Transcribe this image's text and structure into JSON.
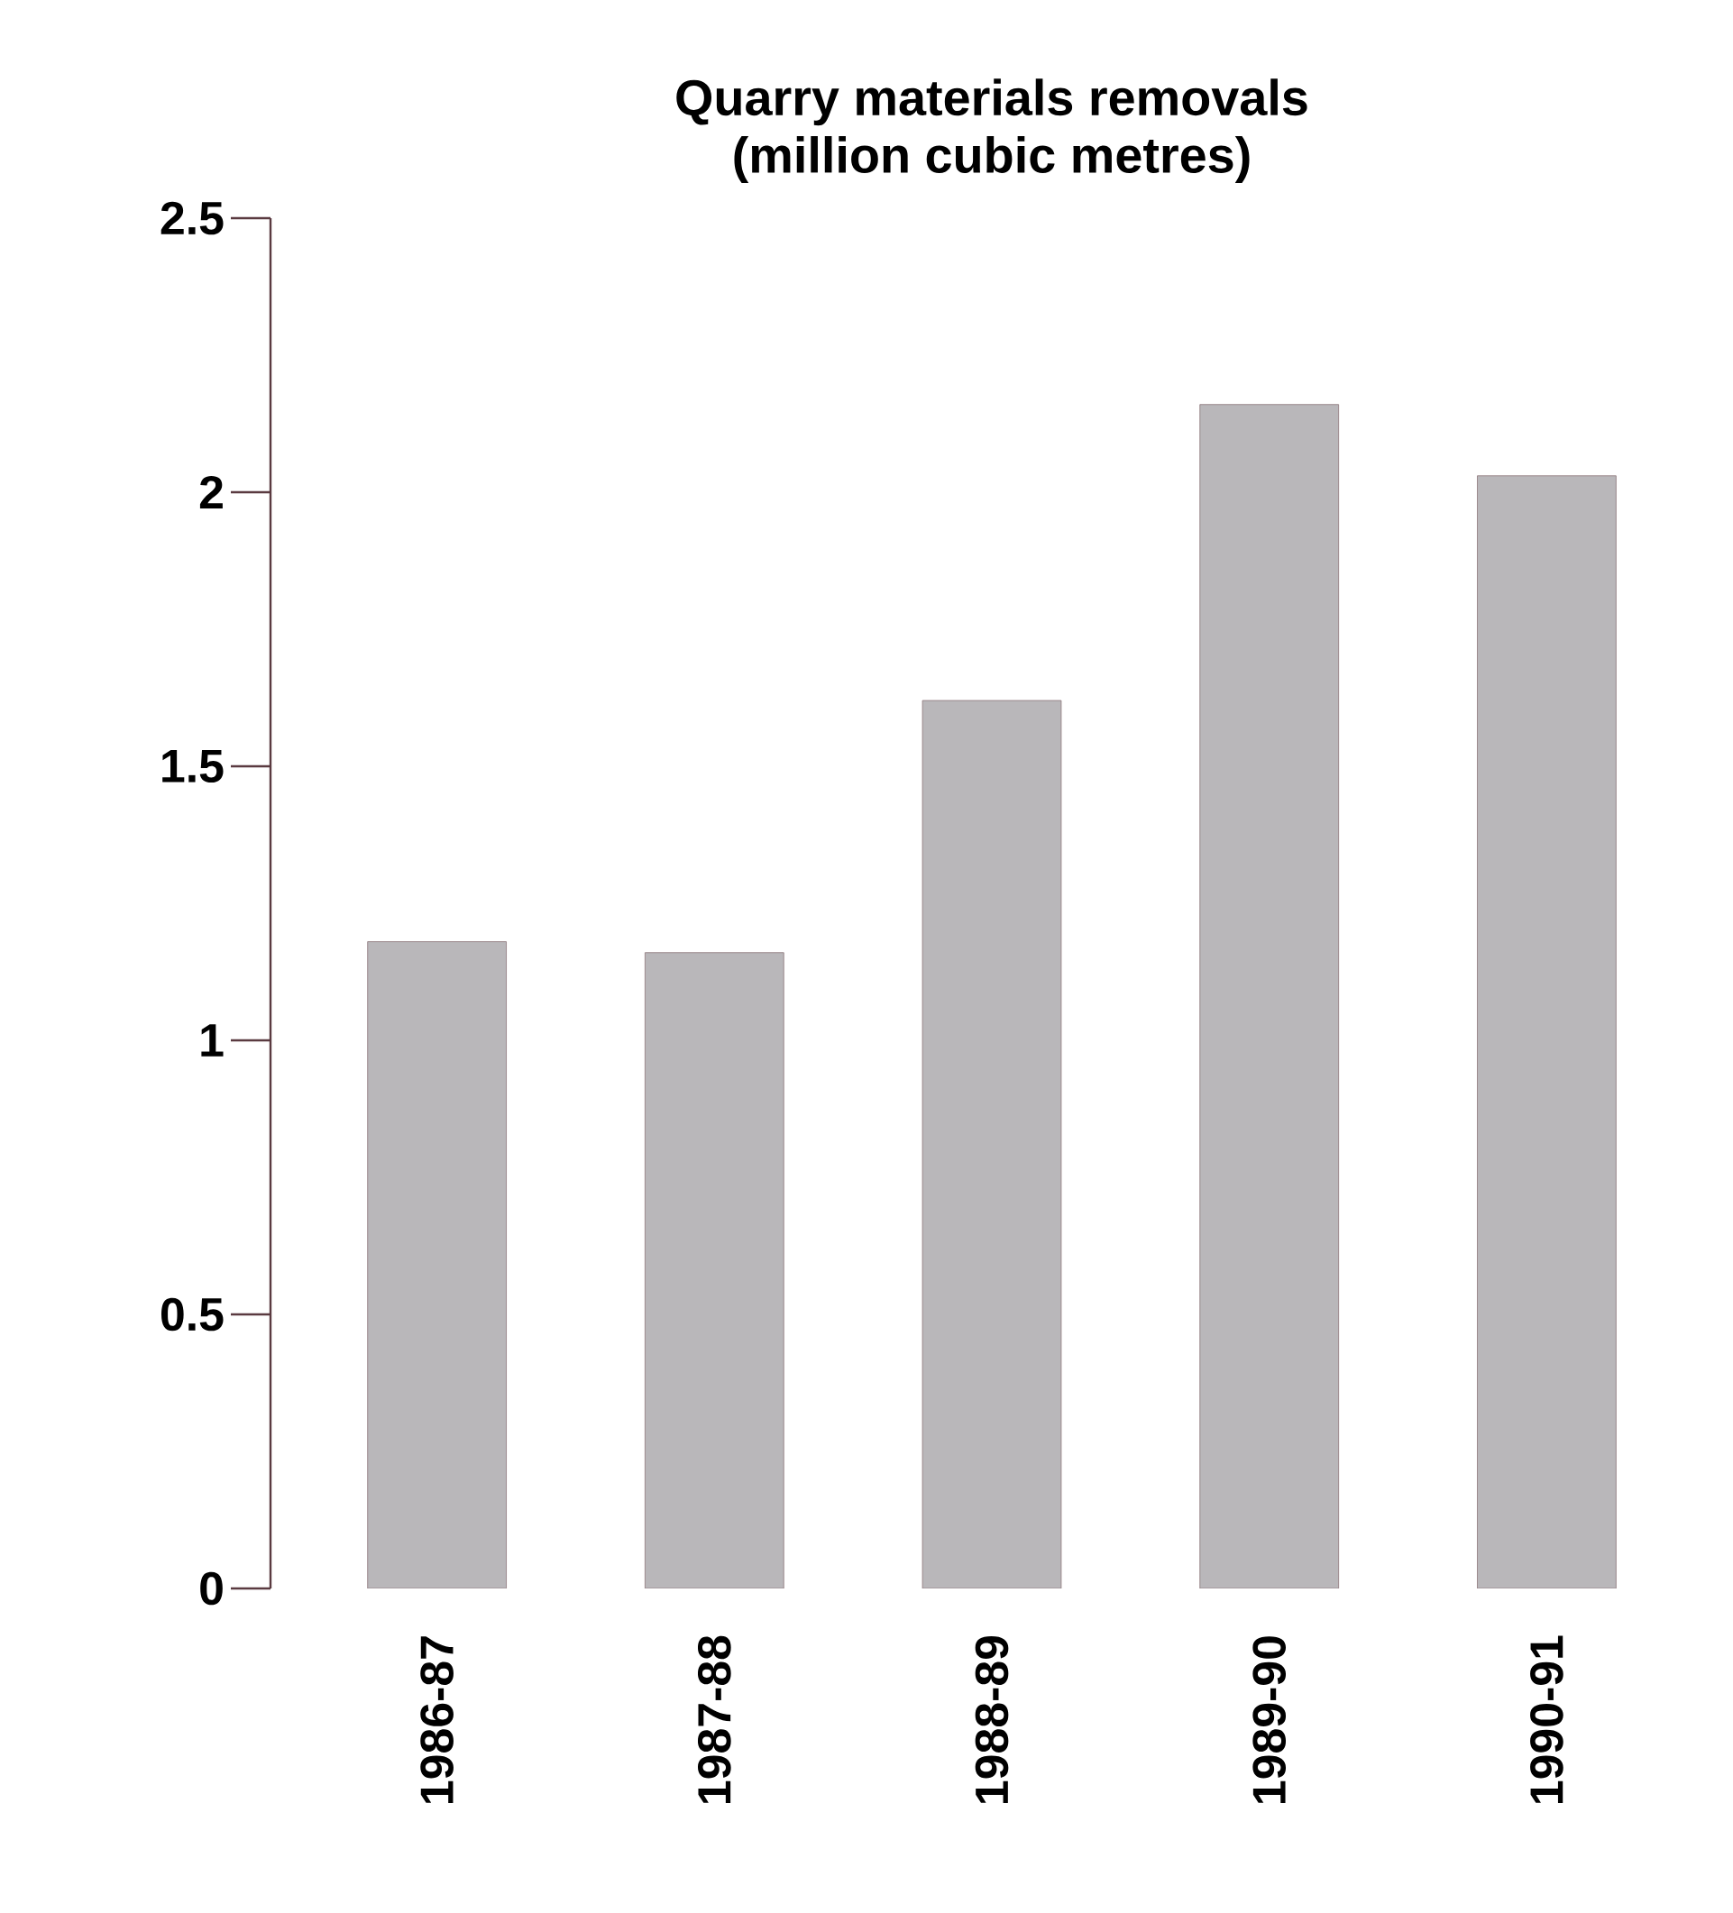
{
  "chart_data": {
    "type": "bar",
    "title": "Quarry materials removals\n(million cubic metres)",
    "categories": [
      "1986-87",
      "1987-88",
      "1988-89",
      "1989-90",
      "1990-91"
    ],
    "values": [
      1.18,
      1.16,
      1.62,
      2.16,
      2.03
    ],
    "color": "#b9b7ba",
    "ylim": [
      0,
      2.5
    ],
    "yticks": [
      0,
      0.5,
      1,
      1.5,
      2,
      2.5
    ]
  }
}
